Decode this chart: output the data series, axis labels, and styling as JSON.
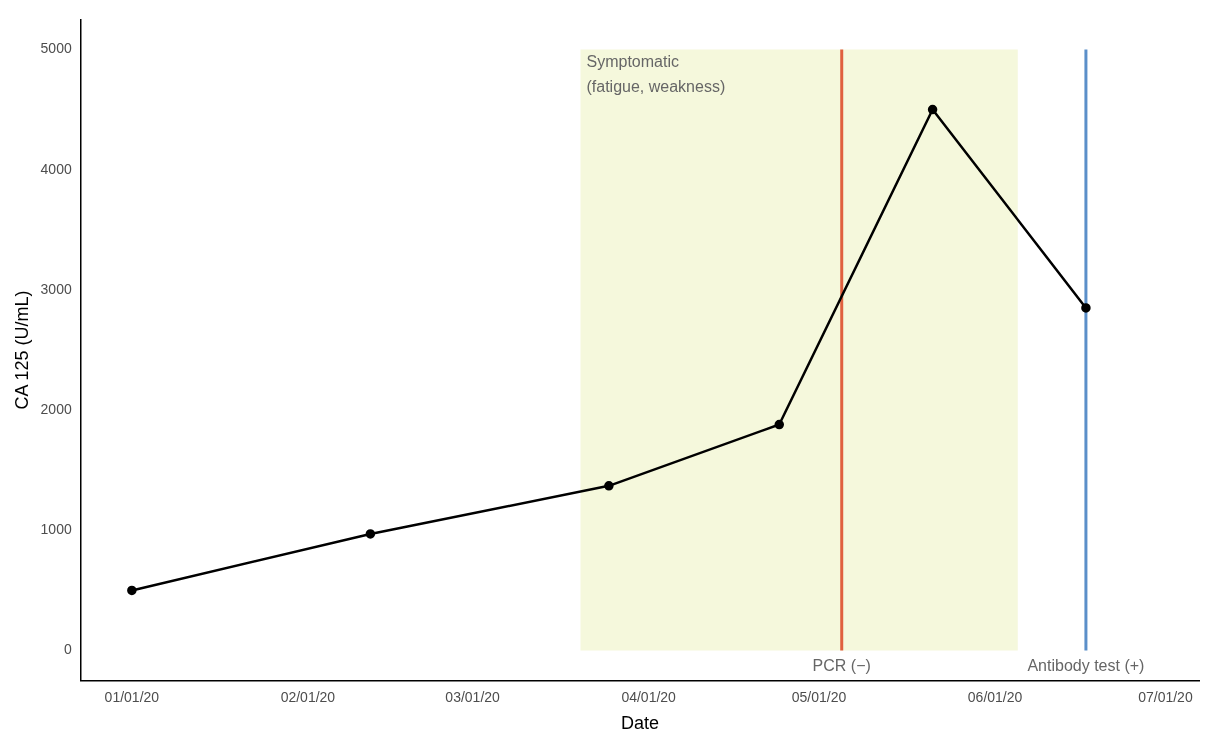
{
  "chart_data": {
    "type": "line",
    "xlabel": "Date",
    "ylabel": "CA 125 (U/mL)",
    "x": [
      "2020-01-01",
      "2020-02-12",
      "2020-03-25",
      "2020-04-24",
      "2020-05-21",
      "2020-06-17"
    ],
    "series": [
      {
        "color": "#000000",
        "values": [
          500,
          970,
          1370,
          1880,
          4500,
          2850
        ]
      }
    ],
    "xlim": [
      "2019-12-23",
      "2020-07-07"
    ],
    "xticks": [
      {
        "value": "2020-01-01",
        "label": "01/01/20"
      },
      {
        "value": "2020-02-01",
        "label": "02/01/20"
      },
      {
        "value": "2020-03-01",
        "label": "03/01/20"
      },
      {
        "value": "2020-04-01",
        "label": "04/01/20"
      },
      {
        "value": "2020-05-01",
        "label": "05/01/20"
      },
      {
        "value": "2020-06-01",
        "label": "06/01/20"
      },
      {
        "value": "2020-07-01",
        "label": "07/01/20"
      }
    ],
    "ylim": [
      -250,
      5250
    ],
    "yticks": [
      0,
      1000,
      2000,
      3000,
      4000,
      5000
    ],
    "bands": [
      {
        "axis": "x",
        "from": "2020-03-20",
        "to": "2020-06-05",
        "label": "Symptomatic\n(fatigue, weakness)",
        "color": "#f5f8dc"
      }
    ],
    "ref_lines": [
      {
        "axis": "x",
        "value": "2020-05-05",
        "label": "PCR (−)",
        "color": "#e0603f"
      },
      {
        "axis": "x",
        "value": "2020-06-17",
        "label": "Antibody test (+)",
        "color": "#5b8fc9"
      }
    ],
    "marker": "circle",
    "line_style": "solid",
    "grid": false,
    "legend": false
  }
}
